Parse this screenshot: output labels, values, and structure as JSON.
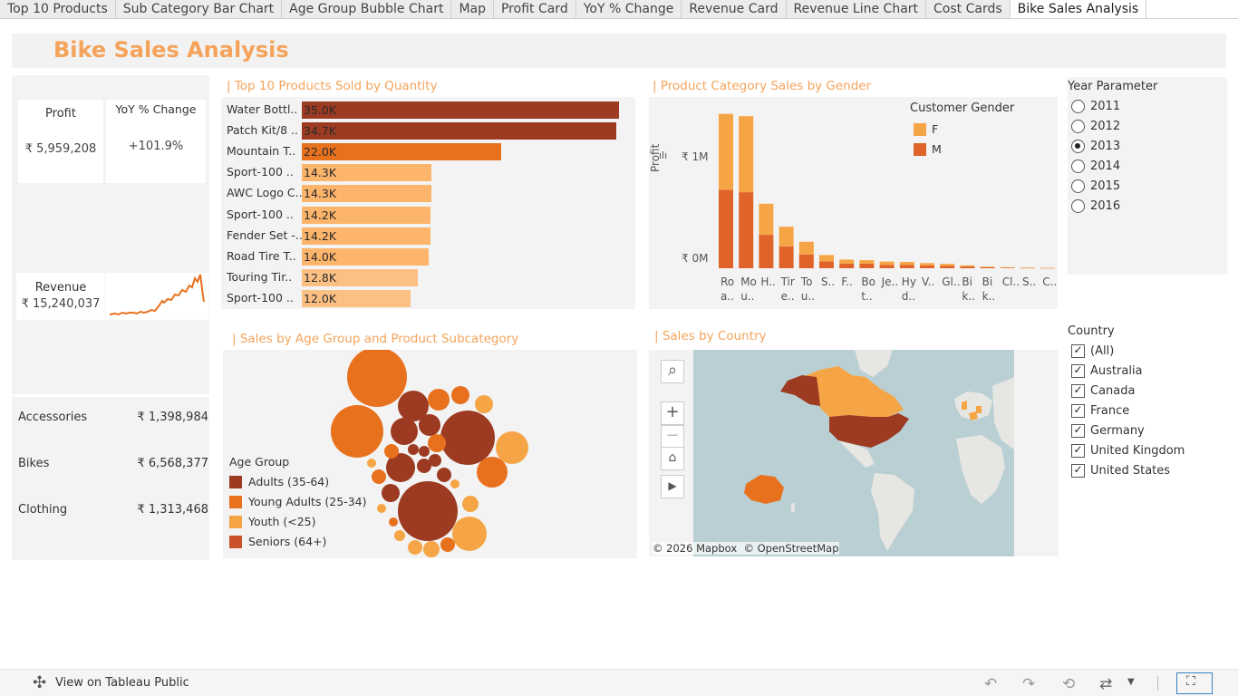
{
  "tabs": [
    "Top 10 Products",
    "Sub Category Bar Chart",
    "Age Group Bubble Chart",
    "Map",
    "Profit Card",
    "YoY % Change",
    "Revenue Card",
    "Revenue Line Chart",
    "Cost Cards",
    "Bike Sales Analysis"
  ],
  "active_tab": "Bike Sales Analysis",
  "dashboard_title": "Bike Sales Analysis",
  "kpis": {
    "profit_label": "Profit",
    "profit_value": "₹ 5,959,208",
    "yoy_label": "YoY % Change",
    "yoy_value": "+101.9%",
    "revenue_label": "Revenue",
    "revenue_value": "₹ 15,240,037"
  },
  "cost_cards": [
    {
      "category": "Accessories",
      "value": "₹ 1,398,984"
    },
    {
      "category": "Bikes",
      "value": "₹ 6,568,377"
    },
    {
      "category": "Clothing",
      "value": "₹ 1,313,468"
    }
  ],
  "sections": {
    "top10_title": "| Top 10 Products Sold by Quantity",
    "gender_title": "| Product Category Sales by Gender",
    "age_title": "| Sales by Age Group and Product Subcategory",
    "country_title": "| Sales by Country"
  },
  "colors": {
    "accent": "#f5a35a",
    "dark_red": "#9c3b22",
    "orange": "#e8711e",
    "light_orange": "#fdb46b",
    "female": "#f5a545",
    "male": "#e0642a"
  },
  "chart_data": [
    {
      "type": "bar",
      "title": "| Top 10 Products Sold by Quantity",
      "categories": [
        "Water Bottl..",
        "Patch Kit/8 ..",
        "Mountain T..",
        "Sport-100 ..",
        "AWC Logo C..",
        "Sport-100 ..",
        "Fender Set -..",
        "Road Tire T..",
        "Touring Tir..",
        "Sport-100 .."
      ],
      "values": [
        35000,
        34700,
        22000,
        14300,
        14300,
        14200,
        14200,
        14000,
        12800,
        12000
      ],
      "labels": [
        "35.0K",
        "34.7K",
        "22.0K",
        "14.3K",
        "14.3K",
        "14.2K",
        "14.2K",
        "14.0K",
        "12.8K",
        "12.0K"
      ],
      "colors": [
        "#9c3b22",
        "#9c3b22",
        "#e8711e",
        "#fdb46b",
        "#fdb46b",
        "#fdb46b",
        "#fdb46b",
        "#fdb46b",
        "#fdc083",
        "#fdc083"
      ],
      "orientation": "horizontal"
    },
    {
      "type": "bar",
      "title": "| Product Category Sales by Gender",
      "ylabel": "Profit",
      "yticks": [
        "₹ 1M",
        "₹ 0M"
      ],
      "legend_title": "Customer Gender",
      "categories": [
        "Ro a..",
        "Mo u..",
        "H..",
        "Tir e..",
        "To u..",
        "S..",
        "F..",
        "Bo t..",
        "Je..",
        "Hy d..",
        "V..",
        "Gl..",
        "Bi k..",
        "Bi k..",
        "Cl..",
        "S..",
        "C.."
      ],
      "series": [
        {
          "name": "M",
          "values": [
            680000,
            660000,
            290000,
            190000,
            120000,
            60000,
            40000,
            40000,
            30000,
            30000,
            25000,
            20000,
            15000,
            8000,
            5000,
            3000,
            2000
          ]
        },
        {
          "name": "F",
          "values": [
            660000,
            660000,
            270000,
            170000,
            110000,
            55000,
            35000,
            30000,
            28000,
            25000,
            20000,
            18000,
            10000,
            6000,
            4000,
            3000,
            2000
          ]
        }
      ],
      "ylim": [
        0,
        1400000
      ]
    }
  ],
  "age_legend": {
    "title": "Age Group",
    "items": [
      {
        "label": "Adults (35-64)",
        "color": "#9c3b22"
      },
      {
        "label": "Young Adults (25-34)",
        "color": "#e8711e"
      },
      {
        "label": "Youth (<25)",
        "color": "#f5a545"
      },
      {
        "label": "Seniors (64+)",
        "color": "#c9522a"
      }
    ]
  },
  "year_parameter": {
    "title": "Year Parameter",
    "options": [
      "2011",
      "2012",
      "2013",
      "2014",
      "2015",
      "2016"
    ],
    "selected": "2013"
  },
  "country_filter": {
    "title": "Country",
    "options": [
      "(All)",
      "Australia",
      "Canada",
      "France",
      "Germany",
      "United Kingdom",
      "United States"
    ]
  },
  "map": {
    "attribution": "© 2026 Mapbox  © OpenStreetMap"
  },
  "footer": {
    "view_label": "View on Tableau Public"
  }
}
